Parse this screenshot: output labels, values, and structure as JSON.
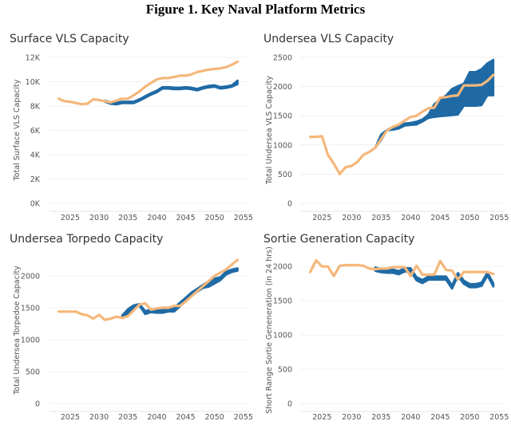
{
  "figure_title": "Figure 1. Key Naval Platform Metrics",
  "colors": {
    "band": "#1f6aa5",
    "line": "#f5b77a"
  },
  "chart_data": [
    {
      "type": "line",
      "title": "Surface VLS Capacity",
      "ylabel": "Total Surface VLS Capacity",
      "xlabel": "",
      "ylim": [
        0,
        12000
      ],
      "yticks": [
        0,
        2000,
        4000,
        6000,
        8000,
        10000,
        12000
      ],
      "ytick_labels": [
        "0K",
        "2K",
        "4K",
        "6K",
        "8K",
        "10K",
        "12K"
      ],
      "xticks": [
        2025,
        2030,
        2035,
        2040,
        2045,
        2050,
        2055
      ],
      "xtick_labels": [
        "2025",
        "2030",
        "2035",
        "2040",
        "2045",
        "2050",
        "2055"
      ],
      "x_start": 2023,
      "line": [
        8600,
        8400,
        8350,
        8250,
        8150,
        8200,
        8550,
        8500,
        8400,
        8300,
        8450,
        8600,
        8600,
        8900,
        9200,
        9600,
        9900,
        10200,
        10300,
        10300,
        10400,
        10500,
        10500,
        10600,
        10800,
        10900,
        11000,
        11050,
        11100,
        11200,
        11400,
        11650
      ],
      "band": {
        "start": 2031,
        "low": [
          8350,
          8180,
          8130,
          8230,
          8230,
          8230,
          8430,
          8680,
          8930,
          9130,
          9430,
          9430,
          9380,
          9380,
          9430,
          9380,
          9280,
          9430,
          9530,
          9580,
          9430,
          9480,
          9580,
          9800
        ],
        "high": [
          8450,
          8320,
          8270,
          8370,
          8370,
          8370,
          8570,
          8820,
          9070,
          9270,
          9570,
          9570,
          9520,
          9520,
          9570,
          9520,
          9420,
          9570,
          9670,
          9720,
          9570,
          9620,
          9720,
          10100
        ]
      }
    },
    {
      "type": "line",
      "title": "Undersea VLS Capacity",
      "ylabel": "Total Undersea VLS Capacity",
      "xlabel": "",
      "ylim": [
        0,
        2500
      ],
      "yticks": [
        0,
        500,
        1000,
        1500,
        2000,
        2500
      ],
      "ytick_labels": [
        "0",
        "500",
        "1000",
        "1500",
        "2000",
        "2500"
      ],
      "xticks": [
        2025,
        2030,
        2035,
        2040,
        2045,
        2050,
        2055
      ],
      "xtick_labels": [
        "2025",
        "2030",
        "2035",
        "2040",
        "2045",
        "2050",
        "2055"
      ],
      "x_start": 2023,
      "line": [
        1140,
        1140,
        1150,
        830,
        680,
        500,
        620,
        640,
        710,
        830,
        880,
        950,
        1100,
        1250,
        1310,
        1350,
        1420,
        1480,
        1500,
        1570,
        1630,
        1640,
        1810,
        1820,
        1840,
        1850,
        2020,
        2020,
        2020,
        2030,
        2100,
        2200
      ],
      "band": {
        "start": 2034,
        "low": [
          950,
          1080,
          1250,
          1260,
          1280,
          1330,
          1340,
          1350,
          1400,
          1460,
          1480,
          1490,
          1500,
          1510,
          1520,
          1670,
          1670,
          1670,
          1680,
          1850,
          1850
        ],
        "high": [
          950,
          1180,
          1260,
          1310,
          1330,
          1370,
          1380,
          1400,
          1440,
          1520,
          1700,
          1780,
          1850,
          1960,
          2010,
          2050,
          2250,
          2250,
          2300,
          2400,
          2460
        ]
      }
    },
    {
      "type": "line",
      "title": "Undersea Torpedo Capacity",
      "ylabel": "Total Undersea Torpedoe Capacity",
      "xlabel": "",
      "ylim": [
        0,
        2250
      ],
      "yticks": [
        0,
        500,
        1000,
        1500,
        2000
      ],
      "ytick_labels": [
        "0",
        "500",
        "1000",
        "1500",
        "2000"
      ],
      "xticks": [
        2025,
        2030,
        2035,
        2040,
        2045,
        2050,
        2055
      ],
      "xtick_labels": [
        "2025",
        "2030",
        "2035",
        "2040",
        "2045",
        "2050",
        "2055"
      ],
      "x_start": 2023,
      "line": [
        1440,
        1440,
        1440,
        1440,
        1400,
        1380,
        1330,
        1390,
        1310,
        1330,
        1360,
        1340,
        1370,
        1460,
        1550,
        1570,
        1470,
        1490,
        1500,
        1500,
        1530,
        1530,
        1600,
        1680,
        1760,
        1840,
        1920,
        2000,
        2050,
        2100,
        2180,
        2250
      ],
      "band": {
        "start": 2034,
        "low": [
          1360,
          1400,
          1500,
          1530,
          1400,
          1430,
          1420,
          1420,
          1440,
          1440,
          1520,
          1600,
          1680,
          1750,
          1810,
          1830,
          1880,
          1930,
          2020,
          2060,
          2080
        ],
        "high": [
          1380,
          1480,
          1540,
          1560,
          1450,
          1470,
          1480,
          1480,
          1500,
          1500,
          1580,
          1660,
          1740,
          1800,
          1860,
          1920,
          1960,
          1980,
          2070,
          2100,
          2120
        ]
      }
    },
    {
      "type": "line",
      "title": "Sortie Generation Capacity",
      "ylabel": "Short Range Sortie Geneneration (in 24 hrs)",
      "xlabel": "",
      "ylim": [
        0,
        2200
      ],
      "yticks": [
        0,
        500,
        1000,
        1500,
        2000
      ],
      "ytick_labels": [
        "0",
        "500",
        "1000",
        "1500",
        "2000"
      ],
      "xticks": [
        2025,
        2030,
        2035,
        2040,
        2045,
        2050,
        2055
      ],
      "xtick_labels": [
        "2025",
        "2030",
        "2035",
        "2040",
        "2045",
        "2050",
        "2055"
      ],
      "x_start": 2023,
      "line": [
        1920,
        2090,
        2000,
        2000,
        1860,
        2010,
        2020,
        2020,
        2020,
        2010,
        1970,
        1960,
        1970,
        1970,
        1990,
        1990,
        1990,
        1860,
        2010,
        1880,
        1880,
        1880,
        2080,
        1950,
        1940,
        1810,
        1920,
        1920,
        1920,
        1920,
        1920,
        1890
      ],
      "band": {
        "start": 2034,
        "low": [
          1935,
          1915,
          1905,
          1905,
          1885,
          1925,
          1925,
          1795,
          1755,
          1805,
          1805,
          1805,
          1805,
          1675,
          1855,
          1745,
          1695,
          1695,
          1715,
          1865,
          1705
        ],
        "high": [
          1985,
          1965,
          1955,
          1955,
          1935,
          1975,
          1975,
          1845,
          1805,
          1855,
          1855,
          1855,
          1855,
          1725,
          1905,
          1795,
          1745,
          1745,
          1765,
          1915,
          1755
        ]
      }
    }
  ]
}
